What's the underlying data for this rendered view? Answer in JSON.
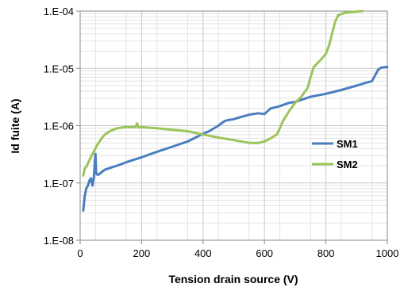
{
  "chart_data": {
    "type": "line",
    "title": "",
    "xlabel": "Tension drain source (V)",
    "ylabel": "Id fuite (A)",
    "xlim": [
      0,
      1000
    ],
    "ylim": [
      1e-08,
      0.0001
    ],
    "y_scale": "log",
    "x_ticks": [
      0,
      200,
      400,
      600,
      800,
      1000
    ],
    "x_tick_labels": [
      "0",
      "200",
      "400",
      "600",
      "800",
      "1000"
    ],
    "y_ticks": [
      1e-08,
      1e-07,
      1e-06,
      1e-05,
      0.0001
    ],
    "y_tick_labels": [
      "1.E-08",
      "1.E-07",
      "1.E-06",
      "1.E-05",
      "1.E-04"
    ],
    "grid": true,
    "legend_position": "right",
    "colors": {
      "SM1": "#4a7ebf",
      "SM2": "#9bc45a",
      "grid": "#c8c8c8",
      "axis": "#888888"
    },
    "series": [
      {
        "name": "SM1",
        "x": [
          10,
          15,
          20,
          25,
          30,
          35,
          40,
          45,
          48,
          50,
          52,
          55,
          60,
          70,
          80,
          100,
          120,
          150,
          180,
          200,
          250,
          300,
          350,
          400,
          420,
          450,
          460,
          470,
          480,
          500,
          520,
          550,
          580,
          600,
          620,
          650,
          680,
          700,
          750,
          800,
          850,
          900,
          930,
          950,
          960,
          970,
          980,
          1000
        ],
        "y": [
          3.3e-08,
          6e-08,
          8e-08,
          9e-08,
          1.1e-07,
          1.2e-07,
          9e-08,
          1.3e-07,
          2.5e-07,
          3.2e-07,
          1.5e-07,
          1.4e-07,
          1.4e-07,
          1.55e-07,
          1.7e-07,
          1.85e-07,
          2e-07,
          2.3e-07,
          2.6e-07,
          2.8e-07,
          3.5e-07,
          4.3e-07,
          5.3e-07,
          7.2e-07,
          8e-07,
          1e-06,
          1.1e-06,
          1.2e-06,
          1.25e-06,
          1.3e-06,
          1.4e-06,
          1.55e-06,
          1.65e-06,
          1.6e-06,
          2e-06,
          2.2e-06,
          2.5e-06,
          2.6e-06,
          3.2e-06,
          3.6e-06,
          4.2e-06,
          5e-06,
          5.6e-06,
          6e-06,
          7.5e-06,
          9.5e-06,
          1.03e-05,
          1.06e-05
        ]
      },
      {
        "name": "SM2",
        "x": [
          10,
          15,
          20,
          30,
          40,
          50,
          55,
          60,
          70,
          80,
          100,
          120,
          150,
          180,
          185,
          190,
          200,
          250,
          300,
          350,
          400,
          450,
          500,
          550,
          580,
          600,
          620,
          640,
          650,
          660,
          680,
          700,
          720,
          740,
          750,
          760,
          780,
          800,
          810,
          820,
          830,
          840,
          860,
          880,
          900,
          920
        ],
        "y": [
          1.35e-07,
          1.8e-07,
          1.9e-07,
          2.5e-07,
          3.2e-07,
          4e-07,
          4.6e-07,
          5e-07,
          6e-07,
          7e-07,
          8.2e-07,
          9e-07,
          9.5e-07,
          9.4e-07,
          1.1e-06,
          9.3e-07,
          9.4e-07,
          9e-07,
          8.5e-07,
          8e-07,
          7e-07,
          6.2e-07,
          5.6e-07,
          5e-07,
          5e-07,
          5.3e-07,
          6e-07,
          7e-07,
          9e-07,
          1.2e-06,
          1.8e-06,
          2.5e-06,
          3.2e-06,
          4.5e-06,
          7e-06,
          1.05e-05,
          1.35e-05,
          1.8e-05,
          2.5e-05,
          4e-05,
          6.5e-05,
          8.5e-05,
          9.3e-05,
          9.6e-05,
          9.8e-05,
          0.0001
        ]
      }
    ]
  }
}
